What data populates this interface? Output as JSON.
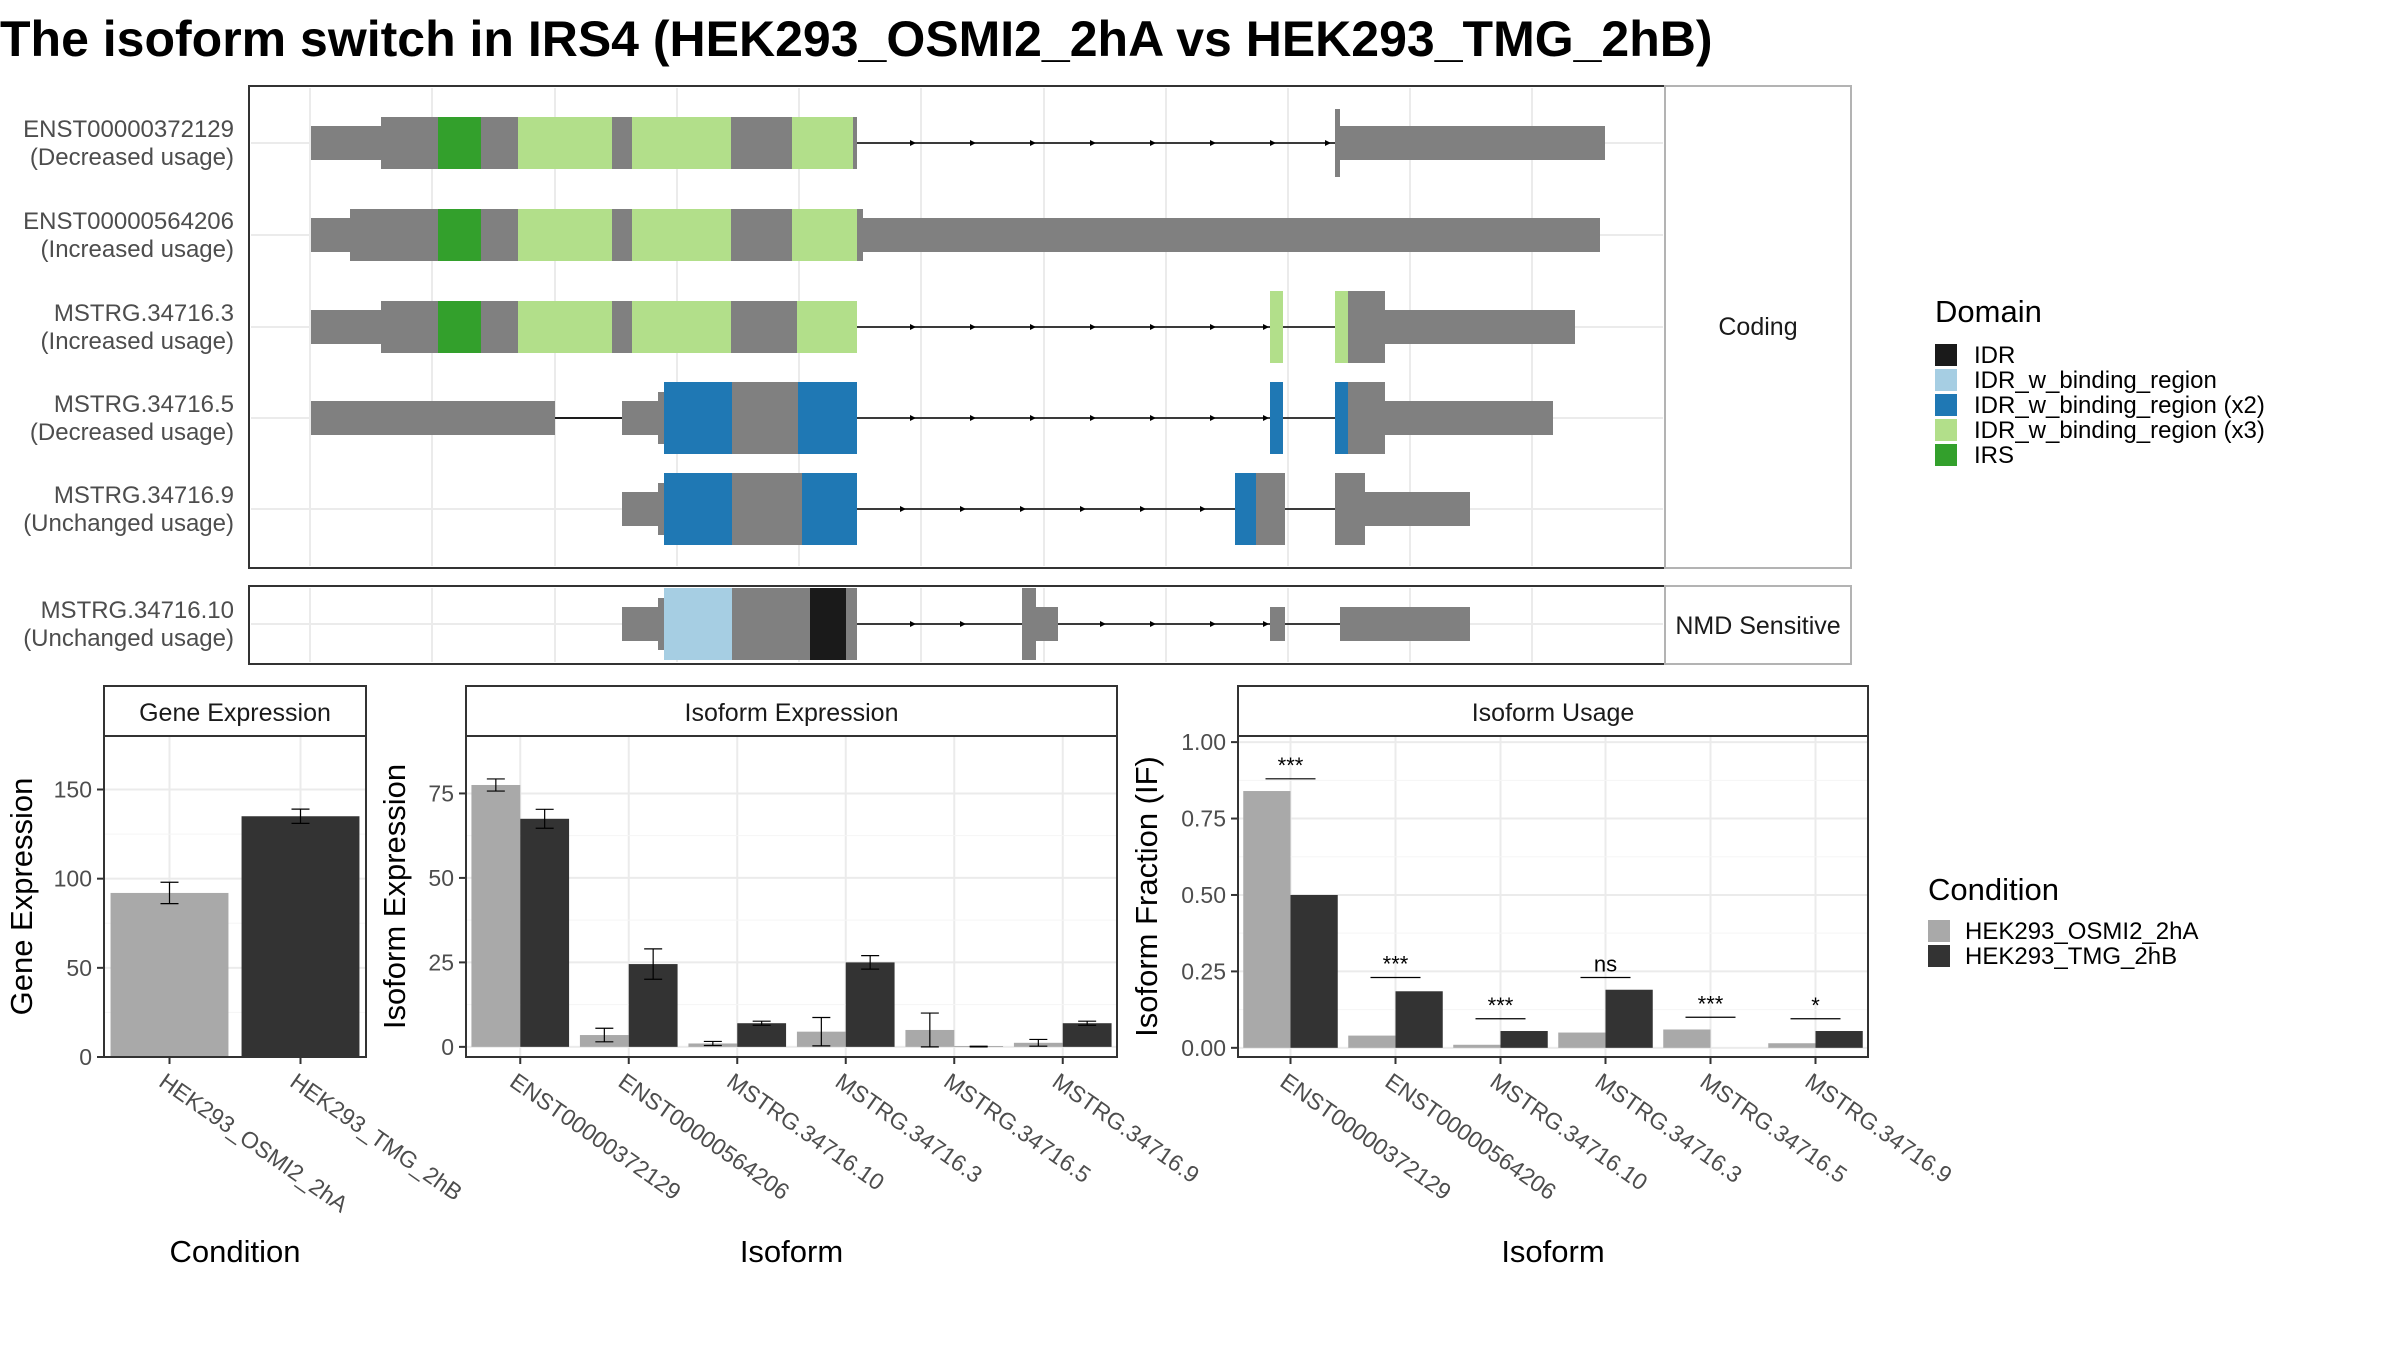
{
  "title": "The isoform switch in IRS4 (HEK293_OSMI2_2hA vs HEK293_TMG_2hB)",
  "colors": {
    "gray": "#808080",
    "IDR": "#1a1a1a",
    "IDR_w_binding_region": "#a6cee3",
    "IDR_w_binding_region_x2": "#1f78b4",
    "IDR_w_binding_region_x3": "#b2df8a",
    "IRS": "#33a02c",
    "cond_a": "#a9a9a9",
    "cond_b": "#333333"
  },
  "transcript_panel": {
    "strips": [
      "Coding",
      "NMD Sensitive"
    ],
    "transcripts": [
      {
        "id": "ENST00000372129",
        "usage": "(Decreased usage)",
        "group": "Coding"
      },
      {
        "id": "ENST00000564206",
        "usage": "(Increased usage)",
        "group": "Coding"
      },
      {
        "id": "MSTRG.34716.3",
        "usage": "(Increased usage)",
        "group": "Coding"
      },
      {
        "id": "MSTRG.34716.5",
        "usage": "(Decreased usage)",
        "group": "Coding"
      },
      {
        "id": "MSTRG.34716.9",
        "usage": "(Unchanged usage)",
        "group": "Coding"
      },
      {
        "id": "MSTRG.34716.10",
        "usage": "(Unchanged usage)",
        "group": "NMD Sensitive"
      }
    ],
    "legend_title": "Domain",
    "legend": [
      {
        "label": "IDR",
        "key": "IDR"
      },
      {
        "label": "IDR_w_binding_region",
        "key": "IDR_w_binding_region"
      },
      {
        "label": "IDR_w_binding_region (x2)",
        "key": "IDR_w_binding_region_x2"
      },
      {
        "label": "IDR_w_binding_region (x3)",
        "key": "IDR_w_binding_region_x3"
      },
      {
        "label": "IRS",
        "key": "IRS"
      }
    ]
  },
  "condition_legend": {
    "title": "Condition",
    "items": [
      "HEK293_OSMI2_2hA",
      "HEK293_TMG_2hB"
    ]
  },
  "chart_data": [
    {
      "type": "bar",
      "title": "Gene Expression",
      "xlabel": "Condition",
      "ylabel": "Gene Expression",
      "ylim": [
        0,
        180
      ],
      "yticks": [
        0,
        50,
        100,
        150
      ],
      "categories": [
        "HEK293_OSMI2_2hA",
        "HEK293_TMG_2hB"
      ],
      "values": [
        92,
        135
      ],
      "errors": [
        6,
        4
      ]
    },
    {
      "type": "bar",
      "title": "Isoform Expression",
      "xlabel": "Isoform",
      "ylabel": "Isoform Expression",
      "ylim": [
        -3,
        92
      ],
      "yticks": [
        0,
        25,
        50,
        75
      ],
      "categories": [
        "ENST00000372129",
        "ENST00000564206",
        "MSTRG.34716.10",
        "MSTRG.34716.3",
        "MSTRG.34716.5",
        "MSTRG.34716.9"
      ],
      "series": [
        {
          "name": "HEK293_OSMI2_2hA",
          "values": [
            77.5,
            3.5,
            1.0,
            4.5,
            5.0,
            1.2
          ],
          "errors": [
            1.8,
            2.0,
            0.6,
            4.2,
            5.0,
            1.0
          ]
        },
        {
          "name": "HEK293_TMG_2hB",
          "values": [
            67.5,
            24.5,
            7.0,
            25.0,
            0.1,
            7.0
          ],
          "errors": [
            2.8,
            4.5,
            0.6,
            2.0,
            0.1,
            0.6
          ]
        }
      ]
    },
    {
      "type": "bar",
      "title": "Isoform Usage",
      "xlabel": "Isoform",
      "ylabel": "Isoform Fraction (IF)",
      "ylim": [
        -0.03,
        1.02
      ],
      "yticks": [
        "0.00",
        "0.25",
        "0.50",
        "0.75",
        "1.00"
      ],
      "categories": [
        "ENST00000372129",
        "ENST00000564206",
        "MSTRG.34716.10",
        "MSTRG.34716.3",
        "MSTRG.34716.5",
        "MSTRG.34716.9"
      ],
      "series": [
        {
          "name": "HEK293_OSMI2_2hA",
          "values": [
            0.84,
            0.04,
            0.01,
            0.05,
            0.06,
            0.015
          ]
        },
        {
          "name": "HEK293_TMG_2hB",
          "values": [
            0.5,
            0.185,
            0.055,
            0.19,
            0.0,
            0.055
          ]
        }
      ],
      "significance": [
        "***",
        "***",
        "***",
        "ns",
        "***",
        "*"
      ],
      "sig_y": [
        0.88,
        0.23,
        0.095,
        0.23,
        0.1,
        0.095
      ]
    }
  ]
}
